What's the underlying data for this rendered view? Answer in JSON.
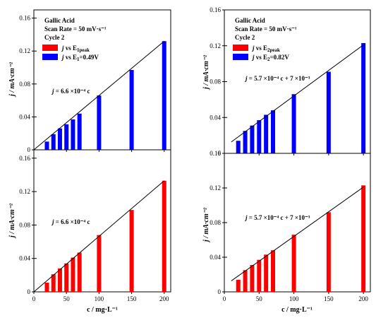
{
  "figure": {
    "xlabel": "c / mg·L⁻¹",
    "ylabel": "j / mA·cm⁻²"
  },
  "chart_data": [
    {
      "type": "bar",
      "id": "top-left",
      "info_lines": [
        "Gallic Acid",
        "Scan Rate = 50 mV·s⁻¹",
        "Cycle 2"
      ],
      "legend": [
        {
          "color": "#ff0000",
          "label_prefix": "j",
          "label": " vs E",
          "sub": "1peak",
          "suffix": ""
        },
        {
          "color": "#0000ff",
          "label_prefix": "j",
          "label": " vs E",
          "sub": "1",
          "suffix": "=0.49V"
        }
      ],
      "series_color": "#0000ff",
      "x": [
        20,
        30,
        40,
        50,
        60,
        70,
        100,
        150,
        200
      ],
      "values": [
        0.01,
        0.019,
        0.026,
        0.031,
        0.037,
        0.044,
        0.066,
        0.097,
        0.132
      ],
      "fit_line": {
        "x": [
          0,
          200
        ],
        "y": [
          0.0,
          0.132
        ]
      },
      "equation": {
        "lead": "j",
        "text": " = 6.6 ×10⁻⁴ c"
      },
      "xlim": [
        0,
        210
      ],
      "ylim": [
        0,
        0.17
      ],
      "yticks": [
        0,
        0.04,
        0.08,
        0.12,
        0.16
      ],
      "ytick_labels": [
        "0",
        "0.04",
        "0.08",
        "0.12",
        "0.16"
      ],
      "xticks": [
        0,
        50,
        100,
        150,
        200
      ],
      "xtick_labels": []
    },
    {
      "type": "bar",
      "id": "top-right",
      "info_lines": [
        "Gallic Acid",
        "Scan Rate = 50 mV·s⁻¹",
        "Cycle 2"
      ],
      "legend": [
        {
          "color": "#ff0000",
          "label_prefix": "j",
          "label": " vs E",
          "sub": "2peak",
          "suffix": ""
        },
        {
          "color": "#0000ff",
          "label_prefix": "j",
          "label": " vs E",
          "sub": "2",
          "suffix": "=0.82V"
        }
      ],
      "series_color": "#0000ff",
      "x": [
        20,
        30,
        40,
        50,
        60,
        70,
        100,
        150,
        200
      ],
      "values": [
        0.014,
        0.025,
        0.031,
        0.037,
        0.043,
        0.048,
        0.066,
        0.091,
        0.123
      ],
      "fit_line": {
        "x": [
          10,
          200
        ],
        "y": [
          0.0127,
          0.121
        ]
      },
      "equation": {
        "lead": "j",
        "text": " = 5.7 ×10⁻⁴ c + 7 ×10⁻³"
      },
      "xlim": [
        0,
        210
      ],
      "ylim": [
        0,
        0.16
      ],
      "yticks": [
        0,
        0.04,
        0.08,
        0.12,
        0.16
      ],
      "ytick_labels": [
        "0",
        "0.04",
        "0.08",
        "0.12",
        "0.16"
      ],
      "xticks": [
        0,
        50,
        100,
        150,
        200
      ],
      "xtick_labels": []
    },
    {
      "type": "bar",
      "id": "bottom-left",
      "info_lines": [],
      "legend": [],
      "series_color": "#ff0000",
      "x": [
        20,
        30,
        40,
        50,
        60,
        70,
        100,
        150,
        200
      ],
      "values": [
        0.011,
        0.021,
        0.028,
        0.034,
        0.041,
        0.047,
        0.068,
        0.098,
        0.133
      ],
      "fit_line": {
        "x": [
          0,
          200
        ],
        "y": [
          0.0,
          0.133
        ]
      },
      "equation": {
        "lead": "j",
        "text": " = 6.6 ×10⁻⁴ c"
      },
      "xlim": [
        0,
        210
      ],
      "ylim": [
        0,
        0.17
      ],
      "yticks": [
        0,
        0.04,
        0.08,
        0.12,
        0.16
      ],
      "ytick_labels": [
        "0",
        "0.04",
        "0.08",
        "0.12",
        "0.16"
      ],
      "xticks": [
        0,
        50,
        100,
        150,
        200
      ],
      "xtick_labels": [
        "0",
        "50",
        "100",
        "150",
        "200"
      ]
    },
    {
      "type": "bar",
      "id": "bottom-right",
      "info_lines": [],
      "legend": [],
      "series_color": "#ff0000",
      "x": [
        20,
        30,
        40,
        50,
        60,
        70,
        100,
        150,
        200
      ],
      "values": [
        0.014,
        0.025,
        0.031,
        0.037,
        0.043,
        0.048,
        0.066,
        0.092,
        0.123
      ],
      "fit_line": {
        "x": [
          10,
          200
        ],
        "y": [
          0.0127,
          0.121
        ]
      },
      "equation": {
        "lead": "j",
        "text": " = 5.7 ×10⁻⁴ c + 7 ×10⁻³"
      },
      "xlim": [
        0,
        210
      ],
      "ylim": [
        0,
        0.16
      ],
      "yticks": [
        0,
        0.04,
        0.08,
        0.12,
        0.16
      ],
      "ytick_labels": [
        "0",
        "0.04",
        "0.08",
        "0.12",
        "0.16"
      ],
      "xticks": [
        0,
        50,
        100,
        150,
        200
      ],
      "xtick_labels": [
        "0",
        "50",
        "100",
        "150",
        "200"
      ]
    }
  ]
}
